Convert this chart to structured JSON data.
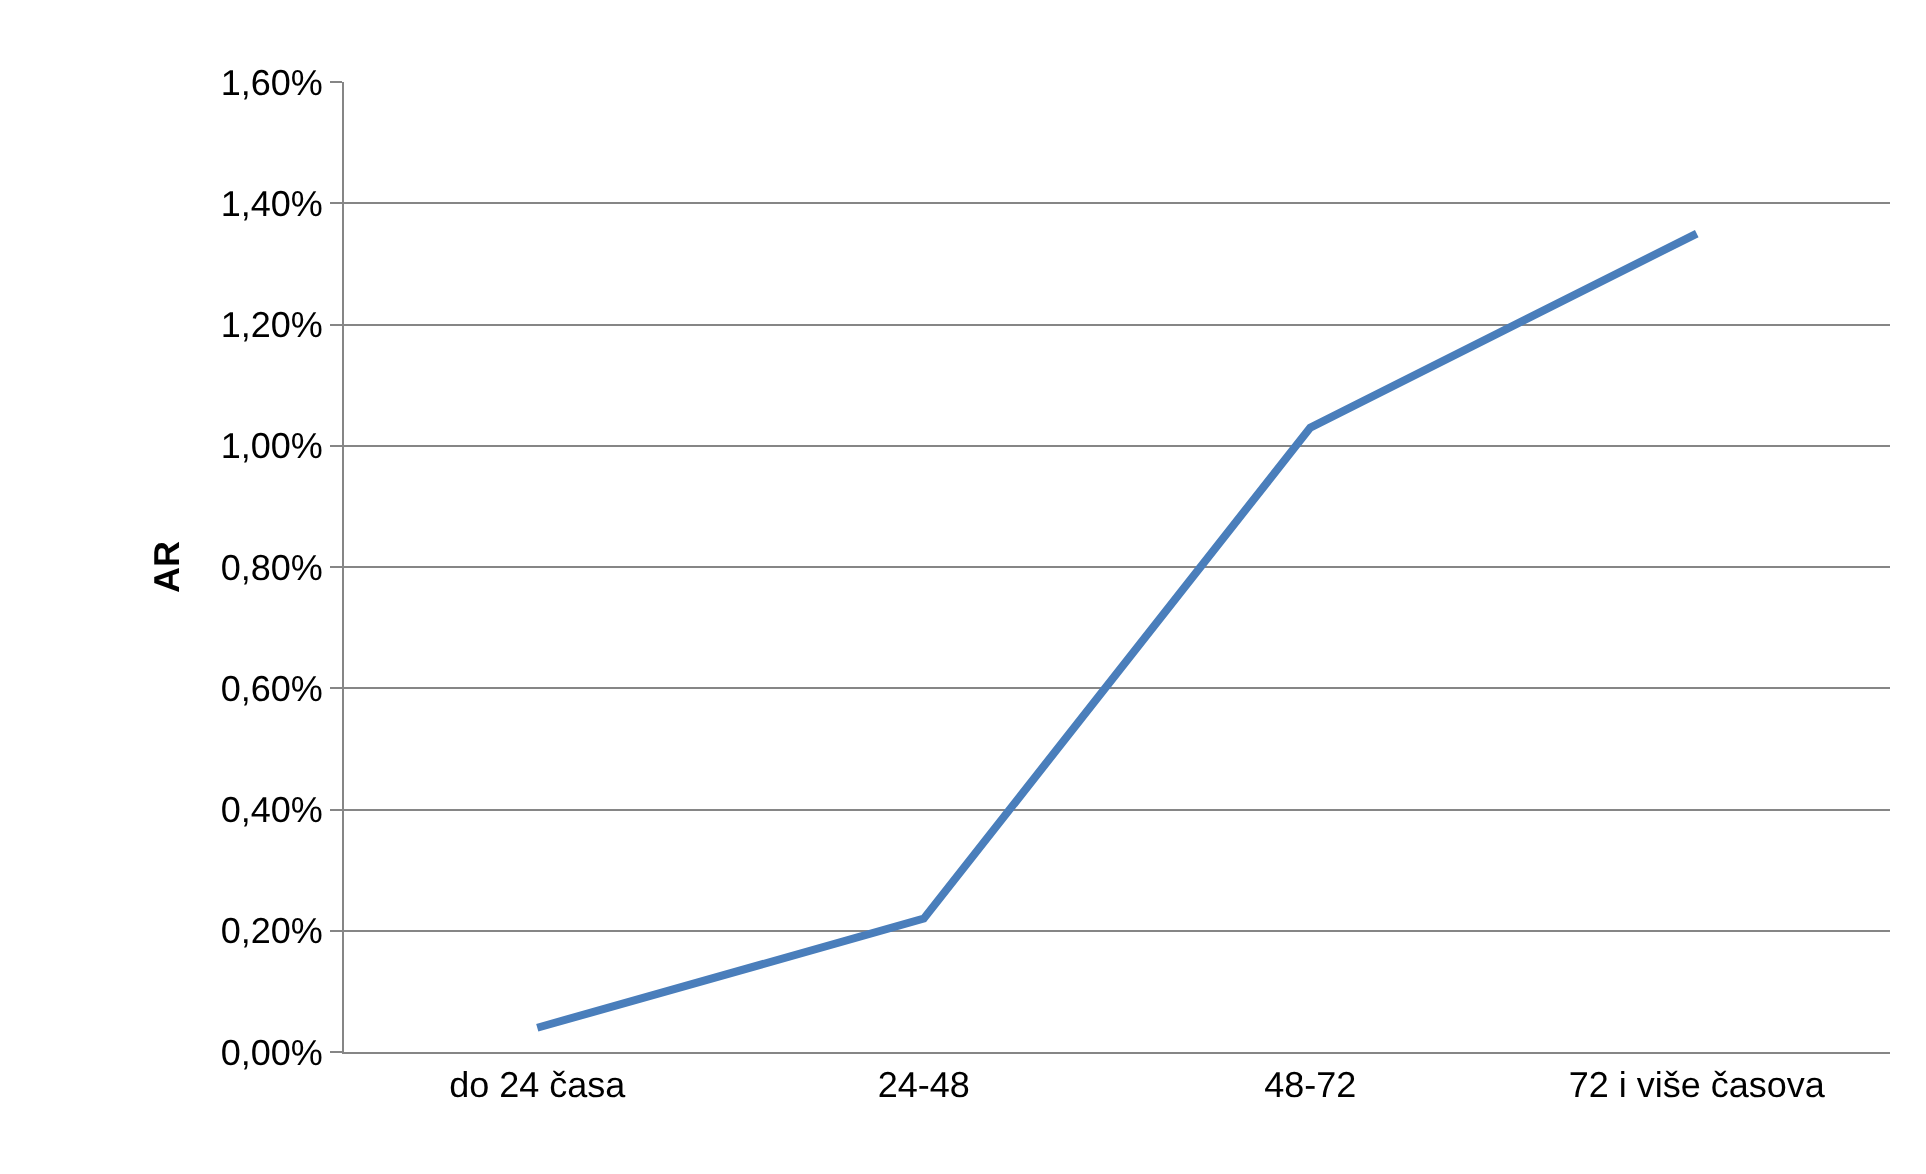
{
  "chart_data": {
    "type": "line",
    "ylabel": "AR",
    "categories": [
      "do 24 časa",
      "24-48",
      "48-72",
      "72 i više časova"
    ],
    "series": [
      {
        "color": "#4a7ebb",
        "values": [
          0.04,
          0.22,
          1.03,
          1.35
        ]
      }
    ],
    "ylim": [
      0,
      1.6
    ],
    "yticks": [
      {
        "value": 0,
        "label": "0,00%"
      },
      {
        "value": 0.2,
        "label": "0,20%"
      },
      {
        "value": 0.4,
        "label": "0,40%"
      },
      {
        "value": 0.6,
        "label": "0,60%"
      },
      {
        "value": 0.8,
        "label": "0,80%"
      },
      {
        "value": 1.0,
        "label": "1,00%"
      },
      {
        "value": 1.2,
        "label": "1,20%"
      },
      {
        "value": 1.4,
        "label": "1,40%"
      },
      {
        "value": 1.6,
        "label": "1,60%"
      }
    ],
    "grid": "y",
    "marker": "none",
    "line_style": "solid"
  }
}
